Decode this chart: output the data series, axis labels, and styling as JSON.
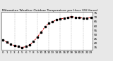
{
  "title": "Milwaukee Weather Outdoor Temperature per Hour (24 Hours)",
  "hours": [
    0,
    1,
    2,
    3,
    4,
    5,
    6,
    7,
    8,
    9,
    10,
    11,
    12,
    13,
    14,
    15,
    16,
    17,
    18,
    19,
    20,
    21,
    22,
    23
  ],
  "temps": [
    44,
    41,
    39,
    37,
    36,
    35,
    36,
    38,
    42,
    47,
    53,
    59,
    63,
    65,
    67,
    68,
    69,
    70,
    71,
    70,
    70,
    69,
    69,
    70
  ],
  "line_color": "#cc0000",
  "marker_color": "#000000",
  "bg_color": "#e8e8e8",
  "plot_bg_color": "#ffffff",
  "grid_color": "#888888",
  "ylim": [
    32,
    76
  ],
  "yticks": [
    35,
    40,
    45,
    50,
    55,
    60,
    65,
    70,
    75
  ],
  "ytick_labels": [
    "35",
    "40",
    "45",
    "50",
    "55",
    "60",
    "65",
    "70",
    "75"
  ],
  "xtick_every": 1,
  "xlabel_fontsize": 3.0,
  "ylabel_fontsize": 3.0,
  "title_fontsize": 3.2,
  "linewidth": 0.7,
  "markersize": 1.5,
  "grid_linewidth": 0.3,
  "vgrid_hours": [
    3,
    6,
    9,
    12,
    15,
    18,
    21
  ]
}
